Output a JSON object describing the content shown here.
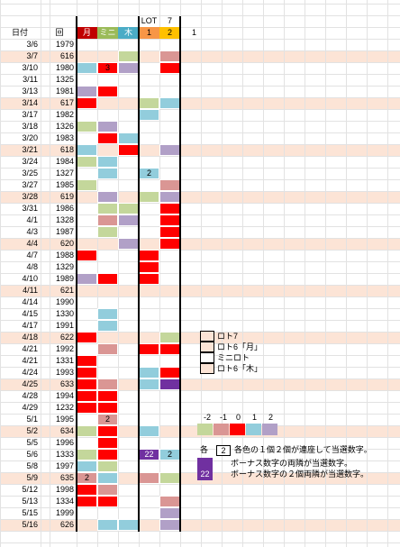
{
  "header": {
    "date_label": "日付",
    "round_label": "回",
    "col_labels": [
      "月",
      "ミニ",
      "木",
      "1",
      "2",
      "1"
    ],
    "lot_label": "LOT",
    "lot_number": "7"
  },
  "colors": {
    "tan": "#fce4d6",
    "red": "#ff0000",
    "pink": "#da9694",
    "lavender": "#b1a0c7",
    "purple": "#7030a0",
    "blue": "#92cddc",
    "green": "#c4d79b",
    "head_red": "#c00000",
    "head_green": "#9bbb59",
    "head_blue": "#4bacc6",
    "head_orange": "#f79646",
    "head_gold": "#ffc000"
  },
  "rows": [
    {
      "date": "3/6",
      "round": "1979",
      "tan": false,
      "cells": [
        "",
        "",
        "",
        "",
        ""
      ]
    },
    {
      "date": "3/7",
      "round": "616",
      "tan": true,
      "cells": [
        "",
        "",
        "green",
        "",
        "pink"
      ]
    },
    {
      "date": "3/10",
      "round": "1980",
      "tan": false,
      "cells": [
        "blue",
        "red",
        "lavender",
        "",
        "red"
      ]
    },
    {
      "date": "3/11",
      "round": "1325",
      "tan": false,
      "cells": [
        "",
        "",
        "",
        "",
        ""
      ]
    },
    {
      "date": "3/13",
      "round": "1981",
      "tan": false,
      "cells": [
        "lavender",
        "red",
        "",
        "",
        ""
      ]
    },
    {
      "date": "3/14",
      "round": "617",
      "tan": true,
      "cells": [
        "red",
        "",
        "",
        "green",
        "blue"
      ]
    },
    {
      "date": "3/17",
      "round": "1982",
      "tan": false,
      "cells": [
        "",
        "",
        "",
        "blue",
        ""
      ]
    },
    {
      "date": "3/18",
      "round": "1326",
      "tan": false,
      "cells": [
        "green",
        "lavender",
        "",
        "",
        ""
      ]
    },
    {
      "date": "3/20",
      "round": "1983",
      "tan": false,
      "cells": [
        "",
        "red",
        "blue",
        "",
        ""
      ]
    },
    {
      "date": "3/21",
      "round": "618",
      "tan": true,
      "cells": [
        "blue",
        "",
        "red",
        "",
        "lavender"
      ]
    },
    {
      "date": "3/24",
      "round": "1984",
      "tan": false,
      "cells": [
        "green",
        "blue",
        "",
        "",
        ""
      ]
    },
    {
      "date": "3/25",
      "round": "1327",
      "tan": false,
      "cells": [
        "",
        "blue",
        "",
        "blue",
        ""
      ]
    },
    {
      "date": "3/27",
      "round": "1985",
      "tan": false,
      "cells": [
        "green",
        "",
        "",
        "",
        "pink"
      ]
    },
    {
      "date": "3/28",
      "round": "619",
      "tan": true,
      "cells": [
        "",
        "lavender",
        "",
        "green",
        "lavender"
      ]
    },
    {
      "date": "3/31",
      "round": "1986",
      "tan": false,
      "cells": [
        "",
        "green",
        "green",
        "",
        "red"
      ]
    },
    {
      "date": "4/1",
      "round": "1328",
      "tan": false,
      "cells": [
        "",
        "pink",
        "lavender",
        "",
        "red"
      ]
    },
    {
      "date": "4/3",
      "round": "1987",
      "tan": false,
      "cells": [
        "",
        "green",
        "",
        "",
        "red"
      ]
    },
    {
      "date": "4/4",
      "round": "620",
      "tan": true,
      "cells": [
        "",
        "",
        "lavender",
        "",
        "red"
      ]
    },
    {
      "date": "4/7",
      "round": "1988",
      "tan": false,
      "cells": [
        "red",
        "",
        "",
        "red",
        ""
      ]
    },
    {
      "date": "4/8",
      "round": "1329",
      "tan": false,
      "cells": [
        "",
        "",
        "",
        "red",
        ""
      ]
    },
    {
      "date": "4/10",
      "round": "1989",
      "tan": false,
      "cells": [
        "lavender",
        "red",
        "",
        "red",
        ""
      ]
    },
    {
      "date": "4/11",
      "round": "621",
      "tan": true,
      "cells": [
        "",
        "",
        "",
        "",
        ""
      ]
    },
    {
      "date": "4/14",
      "round": "1990",
      "tan": false,
      "cells": [
        "",
        "",
        "",
        "",
        ""
      ]
    },
    {
      "date": "4/15",
      "round": "1330",
      "tan": false,
      "cells": [
        "",
        "blue",
        "",
        "",
        ""
      ]
    },
    {
      "date": "4/17",
      "round": "1991",
      "tan": false,
      "cells": [
        "",
        "blue",
        "",
        "",
        ""
      ]
    },
    {
      "date": "4/18",
      "round": "622",
      "tan": true,
      "cells": [
        "red",
        "",
        "",
        "",
        "green"
      ]
    },
    {
      "date": "4/21",
      "round": "1992",
      "tan": false,
      "cells": [
        "",
        "pink",
        "",
        "red",
        "red"
      ]
    },
    {
      "date": "4/21",
      "round": "1331",
      "tan": false,
      "cells": [
        "red",
        "",
        "",
        "",
        ""
      ]
    },
    {
      "date": "4/24",
      "round": "1993",
      "tan": false,
      "cells": [
        "red",
        "",
        "",
        "blue",
        "red"
      ]
    },
    {
      "date": "4/25",
      "round": "633",
      "tan": true,
      "cells": [
        "red",
        "pink",
        "",
        "blue",
        "purple"
      ]
    },
    {
      "date": "4/28",
      "round": "1994",
      "tan": false,
      "cells": [
        "red",
        "red",
        "",
        "",
        ""
      ]
    },
    {
      "date": "4/29",
      "round": "1232",
      "tan": false,
      "cells": [
        "red",
        "red",
        "",
        "",
        ""
      ]
    },
    {
      "date": "5/1",
      "round": "1995",
      "tan": false,
      "cells": [
        "",
        "pink",
        "",
        "",
        ""
      ]
    },
    {
      "date": "5/2",
      "round": "634",
      "tan": true,
      "cells": [
        "green",
        "red",
        "",
        "blue",
        ""
      ]
    },
    {
      "date": "5/5",
      "round": "1996",
      "tan": false,
      "cells": [
        "",
        "red",
        "",
        "",
        ""
      ]
    },
    {
      "date": "5/6",
      "round": "1333",
      "tan": false,
      "cells": [
        "green",
        "red",
        "",
        "purple",
        "blue"
      ]
    },
    {
      "date": "5/8",
      "round": "1997",
      "tan": false,
      "cells": [
        "blue",
        "green",
        "",
        "",
        ""
      ]
    },
    {
      "date": "5/9",
      "round": "635",
      "tan": true,
      "cells": [
        "pink",
        "blue",
        "",
        "pink",
        "green"
      ]
    },
    {
      "date": "5/12",
      "round": "1998",
      "tan": false,
      "cells": [
        "red",
        "pink",
        "",
        "",
        ""
      ]
    },
    {
      "date": "5/13",
      "round": "1334",
      "tan": false,
      "cells": [
        "red",
        "red",
        "",
        "",
        "pink"
      ]
    },
    {
      "date": "5/15",
      "round": "1999",
      "tan": false,
      "cells": [
        "",
        "",
        "",
        "",
        "lavender"
      ]
    },
    {
      "date": "5/16",
      "round": "626",
      "tan": true,
      "cells": [
        "",
        "blue",
        "blue",
        "",
        "lavender"
      ]
    }
  ],
  "cell_numbers": [
    {
      "row": 2,
      "col": 1,
      "text": "3"
    },
    {
      "row": 11,
      "col": 3,
      "text": "2"
    },
    {
      "row": 32,
      "col": 1,
      "text": "2"
    },
    {
      "row": 35,
      "col": 3,
      "text": "22"
    },
    {
      "row": 35,
      "col": 4,
      "text": "2"
    },
    {
      "row": 37,
      "col": 0,
      "text": "2"
    }
  ],
  "legend": {
    "items": [
      {
        "label": "ロト7",
        "color": "tan"
      },
      {
        "label": "ロト6「月」",
        "color": "tan"
      },
      {
        "label": "ミニロト",
        "color": "white"
      },
      {
        "label": "ロト6「木」",
        "color": "tan"
      }
    ],
    "scale_labels": [
      "-2",
      "-1",
      "0",
      "1",
      "2"
    ],
    "scale_colors": [
      "green",
      "pink",
      "red",
      "blue",
      "lavender"
    ],
    "notes": [
      {
        "prefix": "各",
        "box_text": "2",
        "text": "各色の１個２個が連座して当選数字。"
      },
      {
        "prefix": "",
        "box_text": "",
        "text": "ボーナス数字の両隣が当選数字。"
      },
      {
        "prefix": "",
        "box_text": "22",
        "text": "ボーナス数字の２個両隣が当選数字。"
      }
    ]
  }
}
